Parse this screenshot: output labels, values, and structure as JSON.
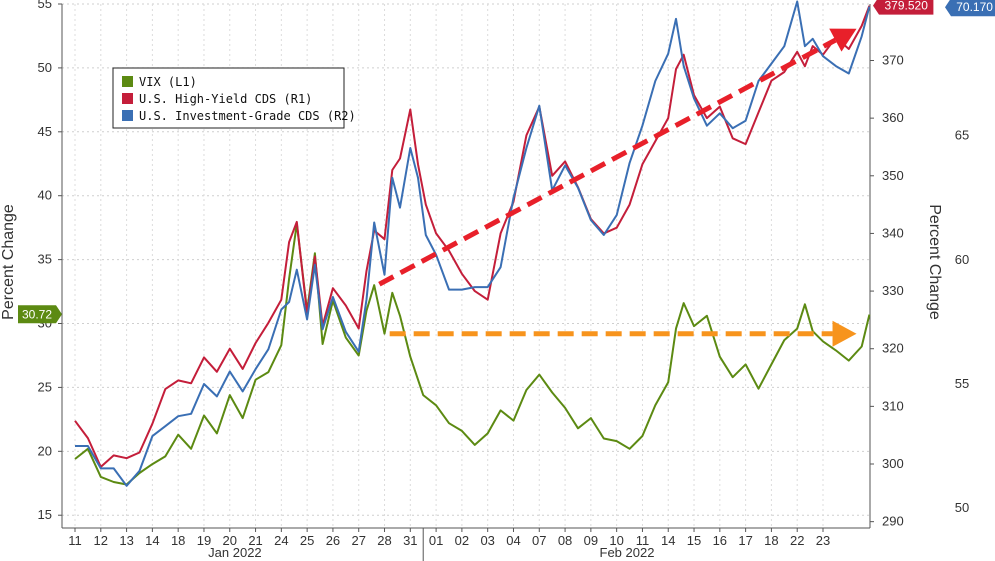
{
  "chart_data": {
    "type": "line",
    "title": "",
    "ylabel_left": "Percent Change",
    "ylabel_right": "Percent Change",
    "y_left_ticks": [
      "15",
      "20",
      "25",
      "30",
      "35",
      "40",
      "45",
      "50",
      "55"
    ],
    "y_left_range": [
      14,
      55
    ],
    "y_r1_ticks": [
      "290",
      "300",
      "310",
      "320",
      "330",
      "340",
      "350",
      "360",
      "370"
    ],
    "y_r1_range": [
      288.9,
      379.8
    ],
    "y_r2_ticks": [
      "50",
      "55",
      "60",
      "65"
    ],
    "y_r2_range": [
      49.2,
      70.3
    ],
    "x_ticks": [
      {
        "label": "11",
        "idx": 1
      },
      {
        "label": "12",
        "idx": 2
      },
      {
        "label": "13",
        "idx": 3
      },
      {
        "label": "14",
        "idx": 4
      },
      {
        "label": "18",
        "idx": 5
      },
      {
        "label": "19",
        "idx": 6
      },
      {
        "label": "20",
        "idx": 7
      },
      {
        "label": "21",
        "idx": 8
      },
      {
        "label": "24",
        "idx": 9
      },
      {
        "label": "25",
        "idx": 10
      },
      {
        "label": "26",
        "idx": 11
      },
      {
        "label": "27",
        "idx": 12
      },
      {
        "label": "28",
        "idx": 13
      },
      {
        "label": "31",
        "idx": 14
      },
      {
        "label": "01",
        "idx": 15
      },
      {
        "label": "02",
        "idx": 16
      },
      {
        "label": "03",
        "idx": 17
      },
      {
        "label": "04",
        "idx": 18
      },
      {
        "label": "07",
        "idx": 19
      },
      {
        "label": "08",
        "idx": 20
      },
      {
        "label": "09",
        "idx": 21
      },
      {
        "label": "10",
        "idx": 22
      },
      {
        "label": "11",
        "idx": 23
      },
      {
        "label": "14",
        "idx": 24
      },
      {
        "label": "15",
        "idx": 25
      },
      {
        "label": "16",
        "idx": 26
      },
      {
        "label": "17",
        "idx": 27
      },
      {
        "label": "18",
        "idx": 28
      },
      {
        "label": "22",
        "idx": 29
      },
      {
        "label": "23",
        "idx": 30
      }
    ],
    "month_labels": [
      {
        "label": "Jan 2022",
        "idx": 7.2
      },
      {
        "label": "Feb 2022",
        "idx": 22.4
      }
    ],
    "month_divider_idx": 14.5,
    "series": [
      {
        "name": "VIX (L1)",
        "axis": "left",
        "color": "#5c8a12",
        "x": [
          0,
          0.5,
          1,
          1.5,
          2,
          2.5,
          3,
          3.5,
          4,
          4.5,
          5,
          5.5,
          6,
          6.5,
          7,
          7.5,
          8,
          8.3,
          8.6,
          9,
          9.3,
          9.6,
          10,
          10.5,
          11,
          11.3,
          11.6,
          12,
          12.3,
          12.6,
          13,
          13.5,
          14,
          14.5,
          15,
          15.5,
          16,
          16.5,
          17,
          17.5,
          18,
          18.5,
          19,
          19.5,
          20,
          20.5,
          21,
          21.5,
          22,
          22.5,
          23,
          23.3,
          23.6,
          24,
          24.5,
          25,
          25.5,
          26,
          26.5,
          27,
          27.5,
          28,
          28.3,
          28.6,
          29,
          29.5,
          30,
          30.5,
          30.8
        ],
        "values": [
          19.4,
          20.2,
          18.0,
          17.6,
          17.4,
          18.3,
          19.0,
          19.6,
          21.3,
          20.2,
          22.8,
          21.4,
          24.4,
          22.6,
          25.6,
          26.2,
          28.3,
          33.5,
          37.8,
          31.0,
          35.5,
          28.4,
          31.8,
          28.9,
          27.5,
          31.0,
          33.0,
          29.2,
          32.4,
          30.6,
          27.4,
          24.4,
          23.6,
          22.2,
          21.6,
          20.5,
          21.4,
          23.2,
          22.4,
          24.8,
          26.0,
          24.6,
          23.4,
          21.8,
          22.6,
          21.0,
          20.8,
          20.2,
          21.2,
          23.6,
          25.4,
          29.6,
          31.6,
          29.8,
          30.6,
          27.4,
          25.8,
          26.8,
          24.9,
          26.8,
          28.7,
          29.6,
          31.5,
          29.4,
          28.6,
          27.9,
          27.1,
          28.2,
          30.7
        ]
      },
      {
        "name": "U.S. High-Yield CDS (R1)",
        "axis": "r1",
        "color": "#c41e3a",
        "x": [
          0,
          0.5,
          1,
          1.5,
          2,
          2.5,
          3,
          3.5,
          4,
          4.5,
          5,
          5.5,
          6,
          6.5,
          7,
          7.5,
          8,
          8.3,
          8.6,
          9,
          9.3,
          9.6,
          10,
          10.5,
          11,
          11.3,
          11.6,
          12,
          12.3,
          12.6,
          13,
          13.3,
          13.6,
          14,
          14.5,
          15,
          15.5,
          16,
          16.5,
          17,
          17.5,
          18,
          18.5,
          19,
          19.5,
          20,
          20.5,
          21,
          21.5,
          22,
          22.5,
          23,
          23.3,
          23.6,
          24,
          24.5,
          25,
          25.5,
          26,
          26.5,
          27,
          27.5,
          28,
          28.3,
          28.6,
          29,
          29.5,
          30,
          30.5,
          30.8
        ],
        "values": [
          307.5,
          304.5,
          299.5,
          301.5,
          301.0,
          302.0,
          307.0,
          313.0,
          314.5,
          314.0,
          318.5,
          316.0,
          320.0,
          316.5,
          321.0,
          324.5,
          328.5,
          338.5,
          342.0,
          326.0,
          336.0,
          324.0,
          330.5,
          327.5,
          323.5,
          333.5,
          340.5,
          339.0,
          351.0,
          353.0,
          361.5,
          352.0,
          345.0,
          340.0,
          337.0,
          333.0,
          330.0,
          328.5,
          340.0,
          345.5,
          357.0,
          362.0,
          350.0,
          352.5,
          348.0,
          342.5,
          340.0,
          341.0,
          345.0,
          352.0,
          356.0,
          360.0,
          368.5,
          371.0,
          364.0,
          360.0,
          362.0,
          356.5,
          355.5,
          361.0,
          366.5,
          368.0,
          371.5,
          369.0,
          372.5,
          371.0,
          374.0,
          372.0,
          376.0,
          379.5
        ]
      },
      {
        "name": "U.S. Investment-Grade CDS (R2)",
        "axis": "r2",
        "color": "#3a6fb4",
        "x": [
          0,
          0.5,
          1,
          1.5,
          2,
          2.5,
          3,
          3.5,
          4,
          4.5,
          5,
          5.5,
          6,
          6.5,
          7,
          7.5,
          8,
          8.3,
          8.6,
          9,
          9.3,
          9.6,
          10,
          10.5,
          11,
          11.3,
          11.6,
          12,
          12.3,
          12.6,
          13,
          13.3,
          13.6,
          14,
          14.5,
          15,
          15.5,
          16,
          16.5,
          17,
          17.5,
          18,
          18.5,
          19,
          19.5,
          20,
          20.5,
          21,
          21.5,
          22,
          22.5,
          23,
          23.3,
          23.6,
          24,
          24.5,
          25,
          25.5,
          26,
          26.5,
          27,
          27.5,
          28,
          28.3,
          28.6,
          29,
          29.5,
          30,
          30.5,
          30.8
        ],
        "values": [
          52.5,
          52.5,
          51.6,
          51.6,
          50.9,
          51.5,
          52.9,
          53.3,
          53.7,
          53.8,
          55.0,
          54.5,
          55.5,
          54.7,
          55.6,
          56.4,
          58.0,
          58.3,
          59.6,
          57.6,
          59.8,
          57.2,
          58.5,
          57.1,
          56.3,
          58.4,
          61.5,
          59.4,
          63.3,
          62.1,
          64.5,
          63.3,
          61.0,
          60.2,
          58.8,
          58.8,
          58.9,
          58.9,
          59.7,
          62.5,
          64.5,
          66.2,
          62.8,
          63.8,
          62.9,
          61.6,
          61.0,
          61.8,
          63.9,
          65.4,
          67.2,
          68.3,
          69.7,
          67.8,
          66.5,
          65.4,
          65.9,
          65.3,
          65.6,
          67.2,
          67.9,
          68.6,
          70.4,
          68.6,
          68.9,
          68.2,
          67.8,
          67.5,
          69.0,
          70.2
        ]
      }
    ],
    "annotations": [
      {
        "kind": "arrow",
        "color": "#e8202a",
        "from_idx": 11.8,
        "from_val": 331.2,
        "to_idx": 30.3,
        "to_val": 375.5,
        "axis": "r1"
      },
      {
        "kind": "arrow",
        "color": "#f7941d",
        "from_idx": 12.2,
        "from_val": 29.2,
        "to_idx": 30.3,
        "to_val": 29.2,
        "axis": "left"
      }
    ],
    "last_values": [
      {
        "label": "30.72",
        "value": 30.72,
        "axis": "left",
        "color": "#5c8a12"
      },
      {
        "label": "379.520",
        "value": 379.52,
        "axis": "r1",
        "color": "#c41e3a"
      },
      {
        "label": "70.170",
        "value": 70.17,
        "axis": "r2",
        "color": "#3a6fb4"
      }
    ],
    "grid": true,
    "legend_position": "top-left"
  }
}
